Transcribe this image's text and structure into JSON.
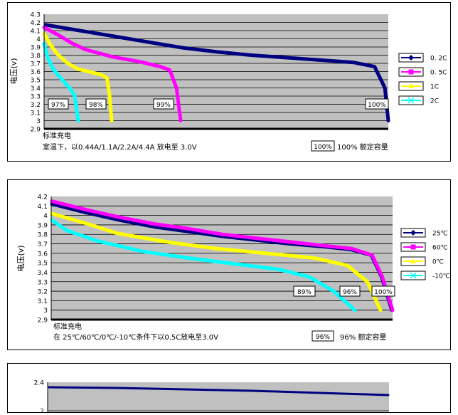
{
  "chart_data": [
    {
      "type": "line",
      "ylabel": "电压(v)",
      "y_ticks": [
        "4.3",
        "4.2",
        "4.1",
        "4",
        "3.9",
        "3.8",
        "3.7",
        "3.6",
        "3.5",
        "3.4",
        "3.3",
        "3.2",
        "3.1",
        "3",
        "2.9"
      ],
      "ylim": [
        2.9,
        4.3
      ],
      "grid": true,
      "legend_position": "right",
      "series": [
        {
          "name": "0. 2C",
          "color": "#000080",
          "x": [
            0,
            0.1,
            0.2,
            0.3,
            0.4,
            0.5,
            0.6,
            0.7,
            0.8,
            0.9,
            0.96,
            0.99,
            1.0
          ],
          "y": [
            4.17,
            4.1,
            4.03,
            3.96,
            3.89,
            3.84,
            3.8,
            3.77,
            3.74,
            3.71,
            3.66,
            3.4,
            3.0
          ]
        },
        {
          "name": "0. 5C",
          "color": "#ff00ff",
          "x": [
            0,
            0.1,
            0.2,
            0.3,
            0.5,
            0.7,
            0.85,
            0.92,
            0.97,
            1.0
          ],
          "y": [
            4.14,
            4.05,
            3.95,
            3.87,
            3.78,
            3.72,
            3.66,
            3.62,
            3.4,
            3.0
          ]
        },
        {
          "name": "1C",
          "color": "#ffff00",
          "x": [
            0,
            0.1,
            0.2,
            0.35,
            0.5,
            0.7,
            0.85,
            0.93,
            0.97,
            1.0
          ],
          "y": [
            4.06,
            3.92,
            3.81,
            3.7,
            3.63,
            3.59,
            3.56,
            3.52,
            3.3,
            3.0
          ]
        },
        {
          "name": "2C",
          "color": "#00ffff",
          "x": [
            0,
            0.1,
            0.25,
            0.4,
            0.55,
            0.7,
            0.8,
            0.9,
            0.95,
            1.0
          ],
          "y": [
            3.94,
            3.78,
            3.64,
            3.56,
            3.49,
            3.42,
            3.37,
            3.3,
            3.15,
            3.0
          ]
        }
      ],
      "percent_labels": [
        "97%",
        "98%",
        "99%",
        "100%"
      ],
      "footer_line1": "标准充电",
      "footer_line2": "室温下，以0.44A/1.1A/2.2A/4.4A 放电至 3.0V",
      "box_label": "100%",
      "capacity_text": "100%  额定容量"
    },
    {
      "type": "line",
      "ylabel": "电压(v)",
      "y_ticks": [
        "4.2",
        "4.1",
        "4",
        "3.9",
        "3.8",
        "3.7",
        "3.6",
        "3.5",
        "3.4",
        "3.3",
        "3.2",
        "3.1",
        "3",
        "2.9"
      ],
      "ylim": [
        2.9,
        4.2
      ],
      "grid": true,
      "legend_position": "right",
      "series": [
        {
          "name": "25℃",
          "color": "#000080",
          "x": [
            0,
            0.1,
            0.2,
            0.3,
            0.4,
            0.5,
            0.6,
            0.7,
            0.8,
            0.88,
            0.94,
            0.97,
            1.0
          ],
          "y": [
            4.12,
            4.03,
            3.95,
            3.88,
            3.83,
            3.78,
            3.74,
            3.7,
            3.67,
            3.64,
            3.58,
            3.35,
            3.0
          ]
        },
        {
          "name": "60℃",
          "color": "#ff00ff",
          "x": [
            0,
            0.1,
            0.2,
            0.3,
            0.4,
            0.5,
            0.6,
            0.7,
            0.8,
            0.88,
            0.94,
            0.97,
            1.0
          ],
          "y": [
            4.15,
            4.06,
            3.98,
            3.91,
            3.86,
            3.8,
            3.76,
            3.72,
            3.68,
            3.65,
            3.58,
            3.35,
            3.0
          ]
        },
        {
          "name": "0℃",
          "color": "#ffff00",
          "x": [
            0,
            0.1,
            0.2,
            0.35,
            0.5,
            0.65,
            0.8,
            0.9,
            0.96,
            1.0
          ],
          "y": [
            4.02,
            3.92,
            3.81,
            3.72,
            3.65,
            3.6,
            3.55,
            3.47,
            3.3,
            3.0
          ]
        },
        {
          "name": "-10℃",
          "color": "#00ffff",
          "x": [
            0,
            0.05,
            0.15,
            0.3,
            0.45,
            0.6,
            0.75,
            0.85,
            0.93,
            1.0
          ],
          "y": [
            3.95,
            3.84,
            3.73,
            3.62,
            3.55,
            3.49,
            3.43,
            3.35,
            3.2,
            3.0
          ]
        }
      ],
      "percent_labels": [
        "89%",
        "96%",
        "100%"
      ],
      "footer_line1": "标准充电",
      "footer_line2": "在 25℃/60℃/0℃/-10℃条件下以0.5C放电至3.0V",
      "box_label": "96%",
      "capacity_text": "96%  额定容量"
    },
    {
      "type": "line",
      "y_ticks": [
        "2.4",
        "2"
      ],
      "ylim": [
        1.8,
        2.4
      ],
      "grid": true,
      "series": [
        {
          "color": "#000080",
          "x": [
            0,
            0.2,
            0.4,
            0.6,
            0.8,
            1.0
          ],
          "y": [
            2.33,
            2.32,
            2.3,
            2.28,
            2.25,
            2.22
          ]
        }
      ]
    }
  ]
}
